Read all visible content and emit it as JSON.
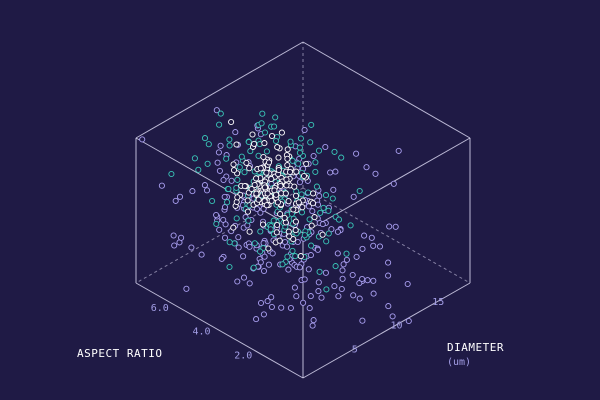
{
  "chart_data": {
    "type": "scatter",
    "projection": "3d-isometric-box",
    "axes": {
      "x": {
        "label": "DIAMETER",
        "unit": "(um)",
        "range": [
          0,
          20
        ],
        "ticks": [
          "5",
          "10",
          "15"
        ]
      },
      "y": {
        "label": "ASPECT RATIO",
        "unit": "",
        "range": [
          0,
          8
        ],
        "ticks": [
          "2.0",
          "4.0",
          "6.0"
        ]
      }
    },
    "grid": false,
    "legend": "none",
    "series": [
      {
        "point_count": 260,
        "color": "#a99ff0",
        "fill": "#1f1a45",
        "center": [
          6,
          3.5
        ],
        "spread": [
          3.2,
          1.9
        ]
      },
      {
        "point_count": 180,
        "color": "#39c6b8",
        "fill": "#1f1a45",
        "center": [
          9,
          5
        ],
        "spread": [
          2.0,
          1.3
        ]
      },
      {
        "point_count": 150,
        "color": "#ffffff",
        "fill": "#1f1a45",
        "center": [
          10,
          5.5
        ],
        "spread": [
          1.2,
          0.9
        ]
      }
    ],
    "colors": {
      "background": "#1f1a45",
      "box": "#d8d6f0",
      "tick": "#a39ee6",
      "title": "#ffffff"
    }
  }
}
